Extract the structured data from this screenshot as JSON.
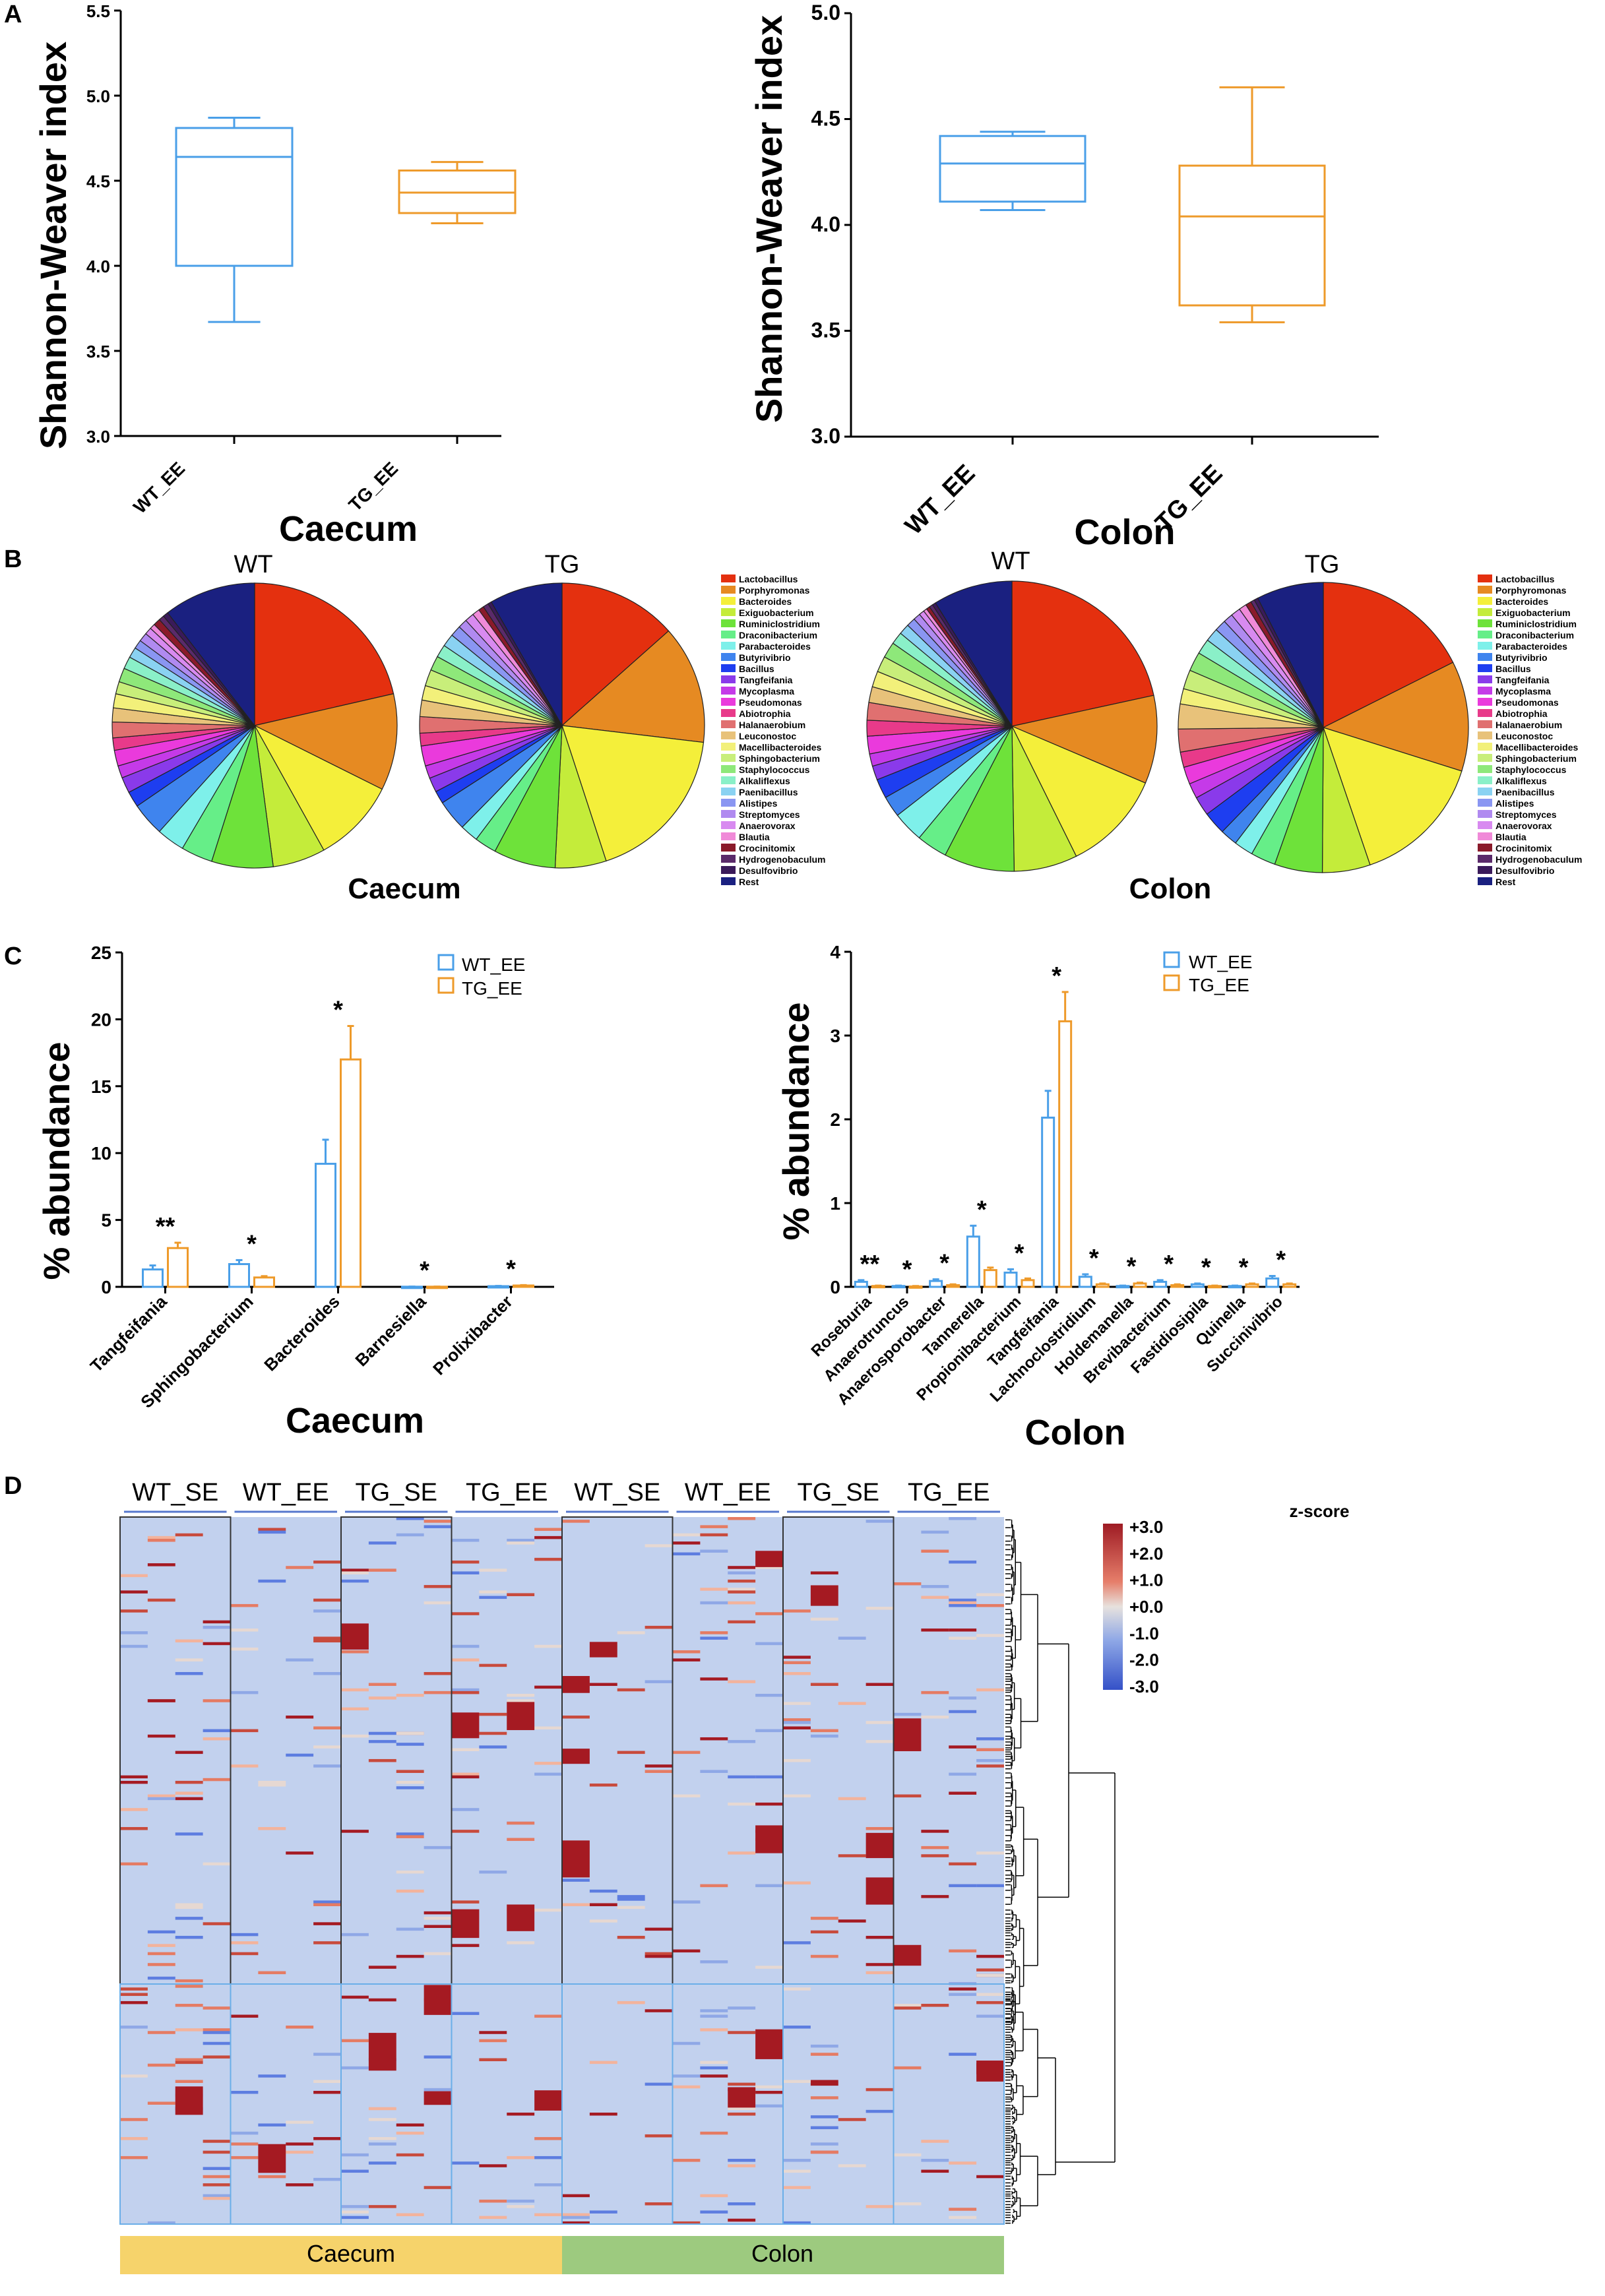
{
  "panel_letters": [
    "A",
    "B",
    "C",
    "D"
  ],
  "colors": {
    "wt": "#4a9fe8",
    "tg": "#ee9a2a"
  },
  "chart_data": [
    {
      "id": "A-caecum",
      "type": "box",
      "ylabel": "Shannon-Weaver index",
      "xlabel": "Caecum",
      "ylim": [
        3.0,
        5.5
      ],
      "yticks": [
        "3.0",
        "3.5",
        "4.0",
        "4.5",
        "5.0",
        "5.5"
      ],
      "groups": [
        {
          "name": "WT_EE",
          "min": 3.67,
          "q1": 4.0,
          "median": 4.64,
          "q3": 4.81,
          "max": 4.87
        },
        {
          "name": "TG_EE",
          "min": 4.25,
          "q1": 4.31,
          "median": 4.43,
          "q3": 4.56,
          "max": 4.61
        }
      ]
    },
    {
      "id": "A-colon",
      "type": "box",
      "ylabel": "Shannon-Weaver index",
      "xlabel": "Colon",
      "ylim": [
        3.0,
        5.0
      ],
      "yticks": [
        "3.0",
        "3.5",
        "4.0",
        "4.5",
        "5.0"
      ],
      "groups": [
        {
          "name": "WT_EE",
          "min": 4.07,
          "q1": 4.11,
          "median": 4.29,
          "q3": 4.42,
          "max": 4.44
        },
        {
          "name": "TG_EE",
          "min": 3.54,
          "q1": 3.62,
          "median": 4.04,
          "q3": 4.28,
          "max": 4.65
        }
      ]
    },
    {
      "id": "B",
      "type": "pie",
      "legend": [
        "Lactobacillus",
        "Porphyromonas",
        "Bacteroides",
        "Exiguobacterium",
        "Ruminiclostridium",
        "Draconibacterium",
        "Parabacteroides",
        "Butyrivibrio",
        "Bacillus",
        "Tangfeifania",
        "Mycoplasma",
        "Pseudomonas",
        "Abiotrophia",
        "Halanaerobium",
        "Leuconostoc",
        "Macellibacteroides",
        "Sphingobacterium",
        "Staphylococcus",
        "Alkaliflexus",
        "Paenibacillus",
        "Alistipes",
        "Streptomyces",
        "Anaerovorax",
        "Blautia",
        "Crocinitomix",
        "Hydrogenobaculum",
        "Desulfovibrio",
        "Rest"
      ],
      "legend_colors": [
        "#e4300f",
        "#e68a22",
        "#f4ef3a",
        "#c4ec3a",
        "#6ee23a",
        "#66ee88",
        "#7ef0ea",
        "#3f84ee",
        "#1e3ef0",
        "#8a3aea",
        "#c53ae8",
        "#ea3adc",
        "#e83a8a",
        "#e07070",
        "#e8c27a",
        "#f2f07a",
        "#c8ee7a",
        "#8ee87a",
        "#8af0c8",
        "#8ad2f2",
        "#8a96f2",
        "#b08af0",
        "#d88af0",
        "#f08ad8",
        "#8a1a2a",
        "#5a2a6a",
        "#3a1a5a",
        "#1a2080"
      ],
      "titles": [
        "WT",
        "TG",
        "WT",
        "TG"
      ],
      "section_labels": [
        "Caecum",
        "Colon"
      ],
      "pies": [
        {
          "values": [
            21.5,
            11.0,
            9.6,
            6.0,
            7.0,
            3.6,
            3.2,
            3.8,
            1.8,
            1.8,
            1.4,
            1.8,
            1.4,
            1.8,
            1.6,
            1.6,
            1.4,
            1.6,
            1.4,
            1.2,
            1.0,
            1.0,
            0.8,
            0.6,
            0.8,
            0.6,
            0.6,
            10.5
          ]
        },
        {
          "values": [
            13.0,
            13.0,
            17.5,
            5.6,
            6.8,
            2.4,
            2.0,
            3.4,
            1.4,
            1.6,
            1.4,
            2.2,
            1.4,
            1.8,
            1.8,
            1.6,
            1.8,
            1.6,
            1.4,
            1.4,
            1.2,
            1.0,
            1.0,
            0.8,
            0.6,
            0.6,
            0.4,
            8.0
          ]
        },
        {
          "values": [
            22.0,
            10.0,
            11.5,
            7.2,
            8.0,
            3.5,
            3.5,
            2.4,
            2.2,
            1.6,
            1.4,
            2.0,
            1.8,
            2.0,
            1.8,
            1.8,
            1.8,
            1.8,
            1.4,
            1.2,
            1.0,
            0.8,
            0.6,
            0.4,
            0.4,
            0.4,
            0.4,
            9.0
          ]
        },
        {
          "values": [
            16.5,
            11.5,
            14.0,
            5.0,
            5.0,
            2.6,
            2.0,
            1.8,
            2.4,
            2.0,
            1.6,
            1.8,
            1.6,
            2.4,
            2.6,
            1.6,
            2.0,
            2.0,
            1.6,
            1.4,
            1.2,
            1.0,
            1.0,
            0.8,
            0.6,
            0.4,
            0.4,
            7.0
          ]
        }
      ]
    },
    {
      "id": "C-caecum",
      "type": "bar",
      "ylabel": "% abundance",
      "xlabel": "Caecum",
      "ylim": [
        0,
        25
      ],
      "yticks": [
        "0",
        "5",
        "10",
        "15",
        "20",
        "25"
      ],
      "legend": [
        "WT_EE",
        "TG_EE"
      ],
      "categories": [
        "Tangfeifania",
        "Sphingobacterium",
        "Bacteroides",
        "Barnesiella",
        "Prolixibacter"
      ],
      "series": [
        {
          "name": "WT_EE",
          "values": [
            1.3,
            1.7,
            9.2,
            0.01,
            0.05
          ],
          "errors": [
            0.3,
            0.3,
            1.8,
            0.01,
            0.02
          ]
        },
        {
          "name": "TG_EE",
          "values": [
            2.9,
            0.7,
            17.0,
            0.01,
            0.1
          ],
          "errors": [
            0.4,
            0.1,
            2.5,
            0.01,
            0.03
          ]
        }
      ],
      "significance": [
        "**",
        "*",
        "*",
        "*",
        "*"
      ]
    },
    {
      "id": "C-colon",
      "type": "bar",
      "ylabel": "% abundance",
      "xlabel": "Colon",
      "ylim": [
        0,
        4
      ],
      "yticks": [
        "0",
        "1",
        "2",
        "3",
        "4"
      ],
      "legend": [
        "WT_EE",
        "TG_EE"
      ],
      "categories": [
        "Roseburia",
        "Anaerotruncus",
        "Anaerosporobacter",
        "Tannerella",
        "Propionibacterium",
        "Tangfeifania",
        "Lachnoclostridium",
        "Holdemanella",
        "Brevibacterium",
        "Fastidiosipila",
        "Quinella",
        "Succinivibrio"
      ],
      "series": [
        {
          "name": "WT_EE",
          "values": [
            0.06,
            0.01,
            0.07,
            0.6,
            0.17,
            2.02,
            0.12,
            0.01,
            0.06,
            0.03,
            0.01,
            0.1
          ],
          "errors": [
            0.02,
            0.005,
            0.02,
            0.13,
            0.04,
            0.32,
            0.03,
            0.005,
            0.02,
            0.01,
            0.005,
            0.03
          ]
        },
        {
          "name": "TG_EE",
          "values": [
            0.01,
            0.005,
            0.02,
            0.2,
            0.08,
            3.17,
            0.03,
            0.04,
            0.02,
            0.01,
            0.03,
            0.03
          ],
          "errors": [
            0.005,
            0.005,
            0.01,
            0.03,
            0.02,
            0.35,
            0.01,
            0.01,
            0.01,
            0.005,
            0.01,
            0.01
          ]
        }
      ],
      "significance": [
        "**",
        "*",
        "*",
        "*",
        "*",
        "*",
        "*",
        "*",
        "*",
        "*",
        "*",
        "*"
      ]
    },
    {
      "id": "D",
      "type": "heatmap",
      "columns": [
        "WT_SE",
        "WT_EE",
        "TG_SE",
        "TG_EE",
        "WT_SE",
        "WT_EE",
        "TG_SE",
        "TG_EE"
      ],
      "sections": [
        "Caecum",
        "Colon"
      ],
      "colorbar": {
        "title": "z-score",
        "ticks": [
          "+3.0",
          "+2.0",
          "+1.0",
          "+0.0",
          "-1.0",
          "-2.0",
          "-3.0"
        ]
      }
    }
  ]
}
